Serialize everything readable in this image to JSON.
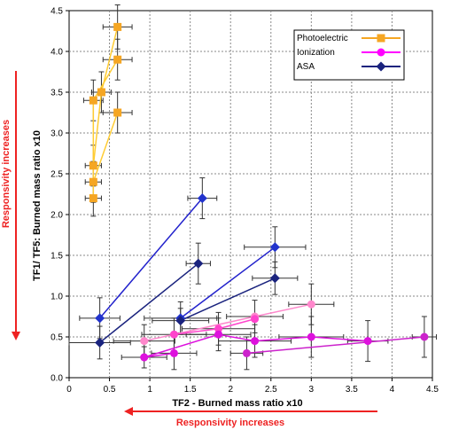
{
  "chart_data": {
    "type": "scatter",
    "xlabel": "TF2 - Burned mass ratio x10",
    "ylabel": "TF1/ TF5: Burned mass ratio x10",
    "xlim": [
      0,
      4.5
    ],
    "ylim": [
      0,
      4.5
    ],
    "x_ticks": [
      "0",
      "0.5",
      "1",
      "1.5",
      "2",
      "2.5",
      "3",
      "3.5",
      "4",
      "4.5"
    ],
    "y_ticks": [
      "0.0",
      "0.5",
      "1.0",
      "1.5",
      "2.0",
      "2.5",
      "3.0",
      "3.5",
      "4.0",
      "4.5"
    ],
    "grid": true,
    "legend_position": "top-right",
    "annotations": {
      "x_arrow_text": "Responsivity increases",
      "y_arrow_text": "Responsivity increases",
      "color": "#ee2222"
    },
    "legend": [
      {
        "label": "Photoelectric",
        "color": "#f5a623",
        "marker": "square"
      },
      {
        "label": "Ionization",
        "color": "#ff00ff",
        "marker": "circle"
      },
      {
        "label": "ASA",
        "color": "#1a237e",
        "marker": "diamond"
      }
    ],
    "series": [
      {
        "marker": "square",
        "color": "#ffcc33",
        "markerColor": "#f5a623",
        "points": [
          [
            0.3,
            2.6
          ],
          [
            0.4,
            3.5
          ],
          [
            0.6,
            4.3
          ]
        ]
      },
      {
        "marker": "square",
        "color": "#ffcc33",
        "markerColor": "#f5a623",
        "points": [
          [
            0.3,
            2.4
          ],
          [
            0.6,
            3.25
          ]
        ]
      },
      {
        "marker": "square",
        "color": "#ffcc33",
        "markerColor": "#f5a623",
        "points": [
          [
            0.3,
            2.2
          ],
          [
            0.3,
            3.4
          ],
          [
            0.6,
            3.9
          ]
        ]
      },
      {
        "marker": "diamond",
        "color": "#2222cc",
        "markerColor": "#2233cc",
        "points": [
          [
            0.38,
            0.73
          ],
          [
            1.65,
            2.2
          ]
        ]
      },
      {
        "marker": "diamond",
        "color": "#1a237e",
        "markerColor": "#1a237e",
        "points": [
          [
            0.38,
            0.43
          ],
          [
            1.6,
            1.4
          ]
        ]
      },
      {
        "marker": "diamond",
        "color": "#2222cc",
        "markerColor": "#2233cc",
        "points": [
          [
            1.38,
            0.73
          ],
          [
            2.55,
            1.6
          ]
        ]
      },
      {
        "marker": "diamond",
        "color": "#1a237e",
        "markerColor": "#1a237e",
        "points": [
          [
            1.38,
            0.7
          ],
          [
            2.55,
            1.22
          ]
        ]
      },
      {
        "marker": "circle",
        "color": "#ff88cc",
        "markerColor": "#ff88cc",
        "points": [
          [
            0.93,
            0.45
          ],
          [
            2.3,
            0.75
          ],
          [
            3.0,
            0.9
          ]
        ]
      },
      {
        "marker": "circle",
        "color": "#ff44cc",
        "markerColor": "#ff44cc",
        "points": [
          [
            1.3,
            0.53
          ],
          [
            1.85,
            0.6
          ],
          [
            2.3,
            0.72
          ]
        ]
      },
      {
        "marker": "circle",
        "color": "#dd11dd",
        "markerColor": "#dd11dd",
        "points": [
          [
            0.93,
            0.25
          ],
          [
            1.85,
            0.53
          ],
          [
            2.3,
            0.45
          ],
          [
            3.0,
            0.5
          ],
          [
            3.7,
            0.45
          ]
        ]
      },
      {
        "marker": "circle",
        "color": "#dd11dd",
        "markerColor": "#dd11dd",
        "points": [
          [
            0.93,
            0.25
          ],
          [
            1.3,
            0.3
          ]
        ]
      },
      {
        "marker": "circle",
        "color": "#cc22cc",
        "markerColor": "#cc22cc",
        "points": [
          [
            2.2,
            0.3
          ],
          [
            4.4,
            0.5
          ]
        ]
      }
    ],
    "error_bars": [
      {
        "x": 0.6,
        "y": 4.3,
        "dx": 0.18,
        "dy": 0.27
      },
      {
        "x": 0.6,
        "y": 3.9,
        "dx": 0.18,
        "dy": 0.25
      },
      {
        "x": 0.4,
        "y": 3.5,
        "dx": 0.12,
        "dy": 0.25
      },
      {
        "x": 0.3,
        "y": 3.4,
        "dx": 0.12,
        "dy": 0.25
      },
      {
        "x": 0.6,
        "y": 3.25,
        "dx": 0.18,
        "dy": 0.25
      },
      {
        "x": 0.3,
        "y": 2.6,
        "dx": 0.1,
        "dy": 0.25
      },
      {
        "x": 0.3,
        "y": 2.4,
        "dx": 0.1,
        "dy": 0.25
      },
      {
        "x": 0.3,
        "y": 2.2,
        "dx": 0.1,
        "dy": 0.22
      },
      {
        "x": 1.65,
        "y": 2.2,
        "dx": 0.18,
        "dy": 0.25
      },
      {
        "x": 1.6,
        "y": 1.4,
        "dx": 0.15,
        "dy": 0.25
      },
      {
        "x": 2.55,
        "y": 1.6,
        "dx": 0.38,
        "dy": 0.25
      },
      {
        "x": 2.55,
        "y": 1.22,
        "dx": 0.28,
        "dy": 0.2
      },
      {
        "x": 0.38,
        "y": 0.73,
        "dx": 0.25,
        "dy": 0.25
      },
      {
        "x": 0.38,
        "y": 0.43,
        "dx": 0.38,
        "dy": 0.2
      },
      {
        "x": 1.38,
        "y": 0.73,
        "dx": 0.45,
        "dy": 0.2
      },
      {
        "x": 1.38,
        "y": 0.7,
        "dx": 0.35,
        "dy": 0.15
      },
      {
        "x": 1.3,
        "y": 0.53,
        "dx": 0.4,
        "dy": 0.2
      },
      {
        "x": 1.85,
        "y": 0.6,
        "dx": 0.45,
        "dy": 0.2
      },
      {
        "x": 2.3,
        "y": 0.75,
        "dx": 0.35,
        "dy": 0.2
      },
      {
        "x": 3.0,
        "y": 0.9,
        "dx": 0.28,
        "dy": 0.25
      },
      {
        "x": 0.93,
        "y": 0.45,
        "dx": 0.38,
        "dy": 0.2
      },
      {
        "x": 0.93,
        "y": 0.25,
        "dx": 0.28,
        "dy": 0.13
      },
      {
        "x": 1.3,
        "y": 0.3,
        "dx": 0.28,
        "dy": 0.2
      },
      {
        "x": 1.85,
        "y": 0.53,
        "dx": 0.4,
        "dy": 0.2
      },
      {
        "x": 2.3,
        "y": 0.45,
        "dx": 0.45,
        "dy": 0.2
      },
      {
        "x": 3.0,
        "y": 0.5,
        "dx": 0.4,
        "dy": 0.25
      },
      {
        "x": 3.7,
        "y": 0.45,
        "dx": 0.25,
        "dy": 0.25
      },
      {
        "x": 2.2,
        "y": 0.3,
        "dx": 0.2,
        "dy": 0.2
      },
      {
        "x": 4.4,
        "y": 0.5,
        "dx": 0.15,
        "dy": 0.25
      }
    ]
  }
}
